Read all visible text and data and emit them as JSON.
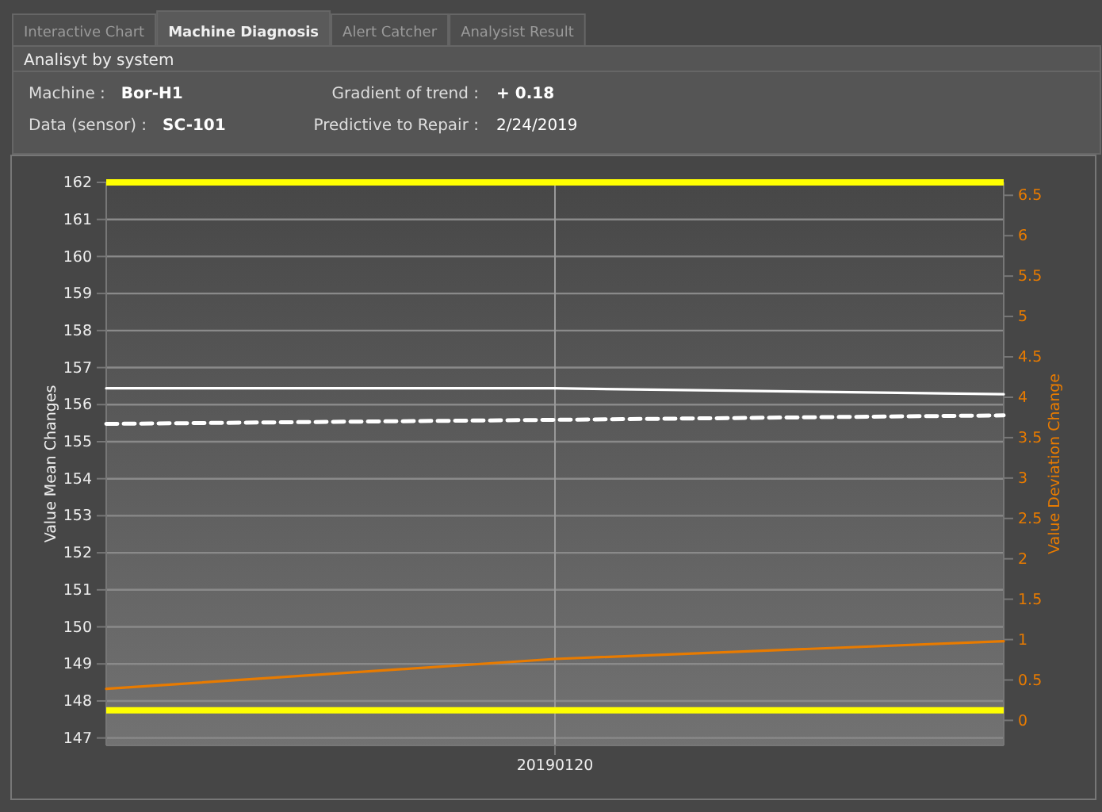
{
  "chart_data": {
    "type": "line",
    "title": "Analisyt by system",
    "annotations": [
      "Interactive Chart",
      "Machine Diagnosis",
      "Alert Catcher",
      "Analysist Result",
      "Machine :",
      "Bor-H1",
      "Data (sensor) :",
      "SC-101",
      "Gradient of trend :",
      "+ 0.18",
      "Predictive to Repair :",
      "2/24/2019"
    ],
    "ylabel": "Value Mean Changes",
    "y2label": "Value Deviation Change",
    "categories": [
      null,
      "20190120",
      null
    ],
    "series": [
      {
        "color": "#ffffff",
        "values": [
          156.44,
          156.44,
          156.28
        ],
        "line_style": "solid"
      },
      {
        "color": "#ffffff",
        "values": [
          155.48,
          155.59,
          155.71
        ],
        "line_style": "dashed"
      },
      {
        "color": "#e87b00",
        "values": [
          0.39,
          0.76,
          0.98
        ],
        "axis": "y2",
        "line_style": "solid"
      }
    ],
    "ylim": [
      146.8,
      162
    ],
    "yticks": [
      147,
      148,
      149,
      150,
      151,
      152,
      153,
      154,
      155,
      156,
      157,
      158,
      159,
      160,
      161,
      162
    ],
    "y2lim": [
      -0.31,
      6.66
    ],
    "y2ticks": [
      0,
      0.5,
      1,
      1.5,
      2,
      2.5,
      3,
      3.5,
      4,
      4.5,
      5,
      5.5,
      6,
      6.5
    ],
    "ref_lines": [
      {
        "axis": "y",
        "value": 162,
        "color": "#ffff00"
      },
      {
        "axis": "y",
        "value": 147.75,
        "color": "#ffff00"
      }
    ],
    "grid": true
  }
}
